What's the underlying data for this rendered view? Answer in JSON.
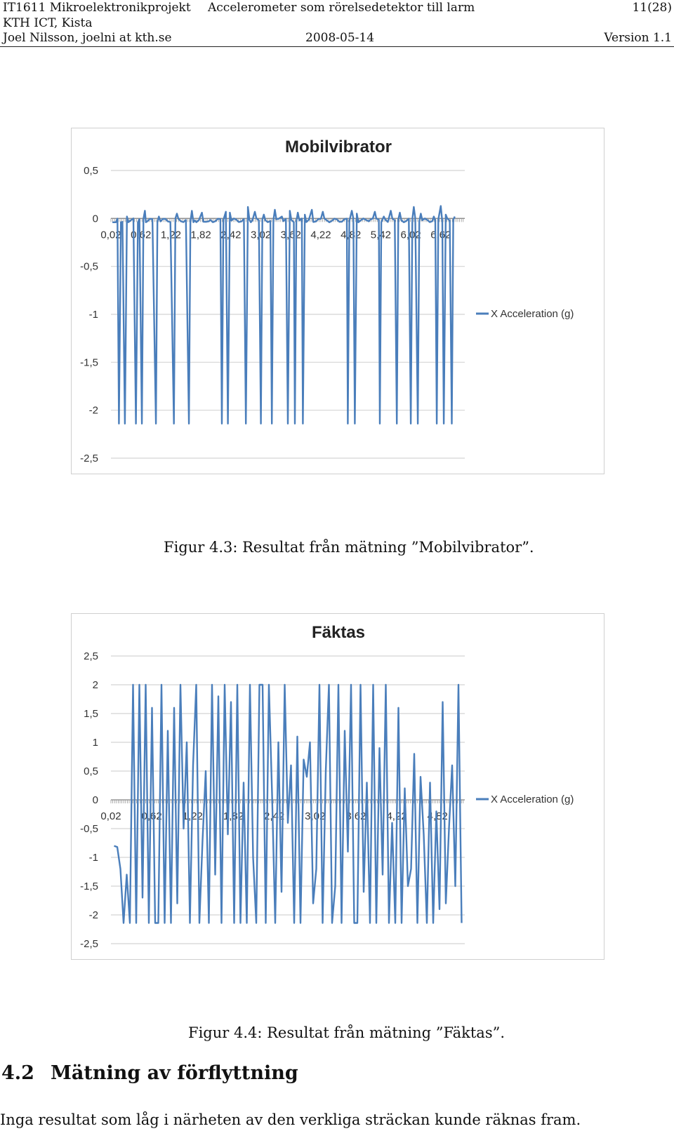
{
  "header": {
    "course": "IT1611 Mikroelektronikprojekt",
    "title": "Accelerometer som rörelsedetektor till larm",
    "page": "11(28)",
    "institution": "KTH ICT, Kista",
    "author": "Joel Nilsson, joelni at kth.se",
    "date": "2008-05-14",
    "version": "Version 1.1"
  },
  "figures": [
    {
      "caption": "Figur 4.3: Resultat från mätning ”Mobilvibrator”."
    },
    {
      "caption": "Figur 4.4: Resultat från mätning ”Fäktas”."
    }
  ],
  "section": {
    "number": "4.2",
    "title": "Mätning av förflyttning"
  },
  "body_text": "Inga resultat som låg i närheten av den verkliga sträckan kunde räknas fram.",
  "chart_data": [
    {
      "type": "line",
      "title": "Mobilvibrator",
      "ylim": [
        -2.5,
        0.5
      ],
      "y_ticks": [
        "0,5",
        "0",
        "-0,5",
        "-1",
        "-1,5",
        "-2",
        "-2,5"
      ],
      "x_tick_labels": [
        "0,02",
        "0,62",
        "1,22",
        "1,82",
        "2,42",
        "3,02",
        "3,62",
        "4,22",
        "4,82",
        "5,42",
        "6,02",
        "6,62"
      ],
      "x_range": [
        0.02,
        7.1
      ],
      "grid": true,
      "legend_position": "right",
      "series": [
        {
          "name": "X Acceleration (g)",
          "color": "#4a7ebb",
          "baseline": -0.02,
          "points": [
            [
              0.12,
              -0.04
            ],
            [
              0.18,
              -2.14
            ],
            [
              0.22,
              -0.04
            ],
            [
              0.3,
              -2.14
            ],
            [
              0.34,
              0.02
            ],
            [
              0.52,
              -2.14
            ],
            [
              0.56,
              -0.04
            ],
            [
              0.64,
              -2.14
            ],
            [
              0.7,
              0.08
            ],
            [
              0.72,
              -0.04
            ],
            [
              0.92,
              -2.14
            ],
            [
              0.98,
              0.02
            ],
            [
              1.28,
              -2.14
            ],
            [
              1.34,
              0.05
            ],
            [
              1.58,
              -2.14
            ],
            [
              1.64,
              0.08
            ],
            [
              1.7,
              -0.02
            ],
            [
              1.84,
              0.06
            ],
            [
              1.98,
              -0.03
            ],
            [
              2.24,
              -2.14
            ],
            [
              2.32,
              0.07
            ],
            [
              2.36,
              -2.14
            ],
            [
              2.4,
              0.06
            ],
            [
              2.72,
              -2.14
            ],
            [
              2.76,
              0.12
            ],
            [
              2.82,
              -0.04
            ],
            [
              2.9,
              0.07
            ],
            [
              3.02,
              -2.14
            ],
            [
              3.08,
              0.04
            ],
            [
              3.24,
              -2.14
            ],
            [
              3.3,
              0.09
            ],
            [
              3.44,
              0.02
            ],
            [
              3.56,
              -2.14
            ],
            [
              3.6,
              0.08
            ],
            [
              3.7,
              -2.14
            ],
            [
              3.76,
              0.06
            ],
            [
              3.86,
              -2.14
            ],
            [
              3.9,
              0.04
            ],
            [
              4.04,
              0.09
            ],
            [
              4.26,
              0.07
            ],
            [
              4.76,
              -2.14
            ],
            [
              4.84,
              0.08
            ],
            [
              4.9,
              -2.14
            ],
            [
              4.94,
              0.05
            ],
            [
              5.18,
              -0.03
            ],
            [
              5.3,
              0.07
            ],
            [
              5.4,
              -2.14
            ],
            [
              5.48,
              0.02
            ],
            [
              5.62,
              0.08
            ],
            [
              5.74,
              -2.14
            ],
            [
              5.8,
              0.06
            ],
            [
              6.02,
              -2.14
            ],
            [
              6.08,
              0.12
            ],
            [
              6.16,
              -2.14
            ],
            [
              6.22,
              0.05
            ],
            [
              6.48,
              0.02
            ],
            [
              6.54,
              -2.14
            ],
            [
              6.62,
              0.13
            ],
            [
              6.68,
              -2.14
            ],
            [
              6.72,
              0.04
            ],
            [
              6.84,
              -2.14
            ],
            [
              6.9,
              0.02
            ]
          ]
        }
      ]
    },
    {
      "type": "line",
      "title": "Fäktas",
      "ylim": [
        -2.5,
        2.5
      ],
      "y_ticks": [
        "2,5",
        "2",
        "1,5",
        "1",
        "0,5",
        "0",
        "-0,5",
        "-1",
        "-1,5",
        "-2",
        "-2,5"
      ],
      "x_tick_labels": [
        "0,02",
        "0,62",
        "1,22",
        "1,82",
        "2,42",
        "3,02",
        "3,62",
        "4,22",
        "4,82"
      ],
      "x_range": [
        0.02,
        5.22
      ],
      "grid": true,
      "legend_position": "right",
      "series": [
        {
          "name": "X Acceleration (g)",
          "color": "#4a7ebb",
          "values": [
            -0.8,
            -0.82,
            -1.2,
            -2.14,
            -1.3,
            -2.14,
            2.0,
            -2.14,
            2.0,
            -1.7,
            2.0,
            -2.14,
            1.6,
            -2.14,
            -2.14,
            2.0,
            -2.14,
            1.2,
            -2.14,
            1.6,
            -1.8,
            2.0,
            -0.5,
            1.0,
            -2.14,
            0.6,
            2.0,
            -2.14,
            -0.7,
            0.5,
            -2.14,
            2.0,
            -1.3,
            1.8,
            -2.14,
            2.0,
            -0.6,
            1.7,
            -2.14,
            2.0,
            -2.14,
            0.3,
            -2.14,
            2.0,
            -1.0,
            -2.14,
            2.0,
            2.0,
            -2.14,
            2.0,
            0.1,
            -2.14,
            1.0,
            -1.6,
            2.0,
            -0.4,
            0.6,
            -2.14,
            1.1,
            -2.14,
            0.7,
            0.4,
            1.0,
            -1.8,
            -1.2,
            2.0,
            -2.14,
            0.5,
            2.0,
            -2.14,
            -1.5,
            2.0,
            -2.14,
            1.2,
            -0.9,
            2.0,
            -2.14,
            -2.14,
            2.0,
            -1.6,
            0.3,
            -2.14,
            2.0,
            -2.14,
            0.9,
            -1.3,
            2.0,
            -2.14,
            -0.4,
            -2.14,
            1.6,
            -2.14,
            0.2,
            -1.5,
            -1.2,
            0.8,
            -2.14,
            0.4,
            -0.6,
            -2.14,
            0.3,
            -2.14,
            -0.2,
            -1.9,
            1.7,
            -1.8,
            -0.5,
            0.6,
            -1.5,
            2.0,
            -2.14
          ]
        }
      ]
    }
  ]
}
